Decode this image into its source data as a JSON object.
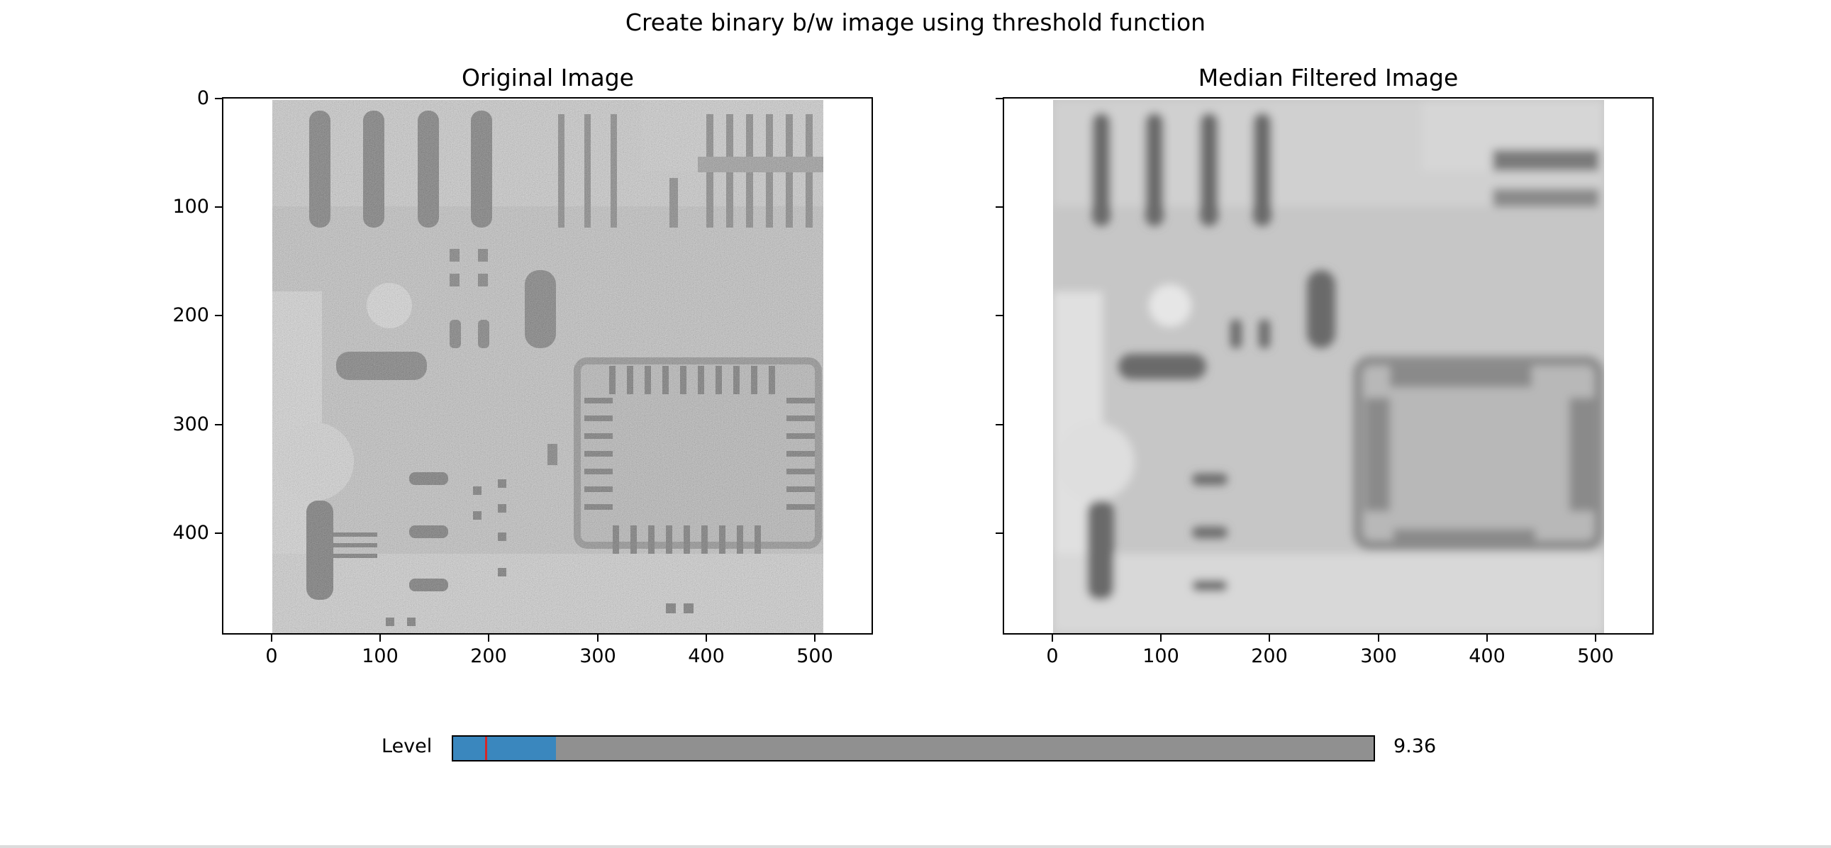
{
  "figure": {
    "suptitle": "Create binary b/w image using threshold function"
  },
  "subplots": [
    {
      "title": "Original Image",
      "y_ticks": [
        "0",
        "100",
        "200",
        "300",
        "400"
      ],
      "x_ticks": [
        "0",
        "100",
        "200",
        "300",
        "400",
        "500"
      ],
      "show_y_labels": true,
      "image": "noisy grayscale circuit board"
    },
    {
      "title": "Median Filtered Image",
      "y_ticks": [
        "0",
        "100",
        "200",
        "300",
        "400"
      ],
      "x_ticks": [
        "0",
        "100",
        "200",
        "300",
        "400",
        "500"
      ],
      "show_y_labels": false,
      "image": "median filtered grayscale circuit board"
    }
  ],
  "slider": {
    "label": "Level",
    "value_text": "9.36",
    "value_fraction": 0.112,
    "initial_marker_fraction": 0.035,
    "fill_color": "#3a87be",
    "track_color": "#909090",
    "marker_color": "#d62728"
  }
}
